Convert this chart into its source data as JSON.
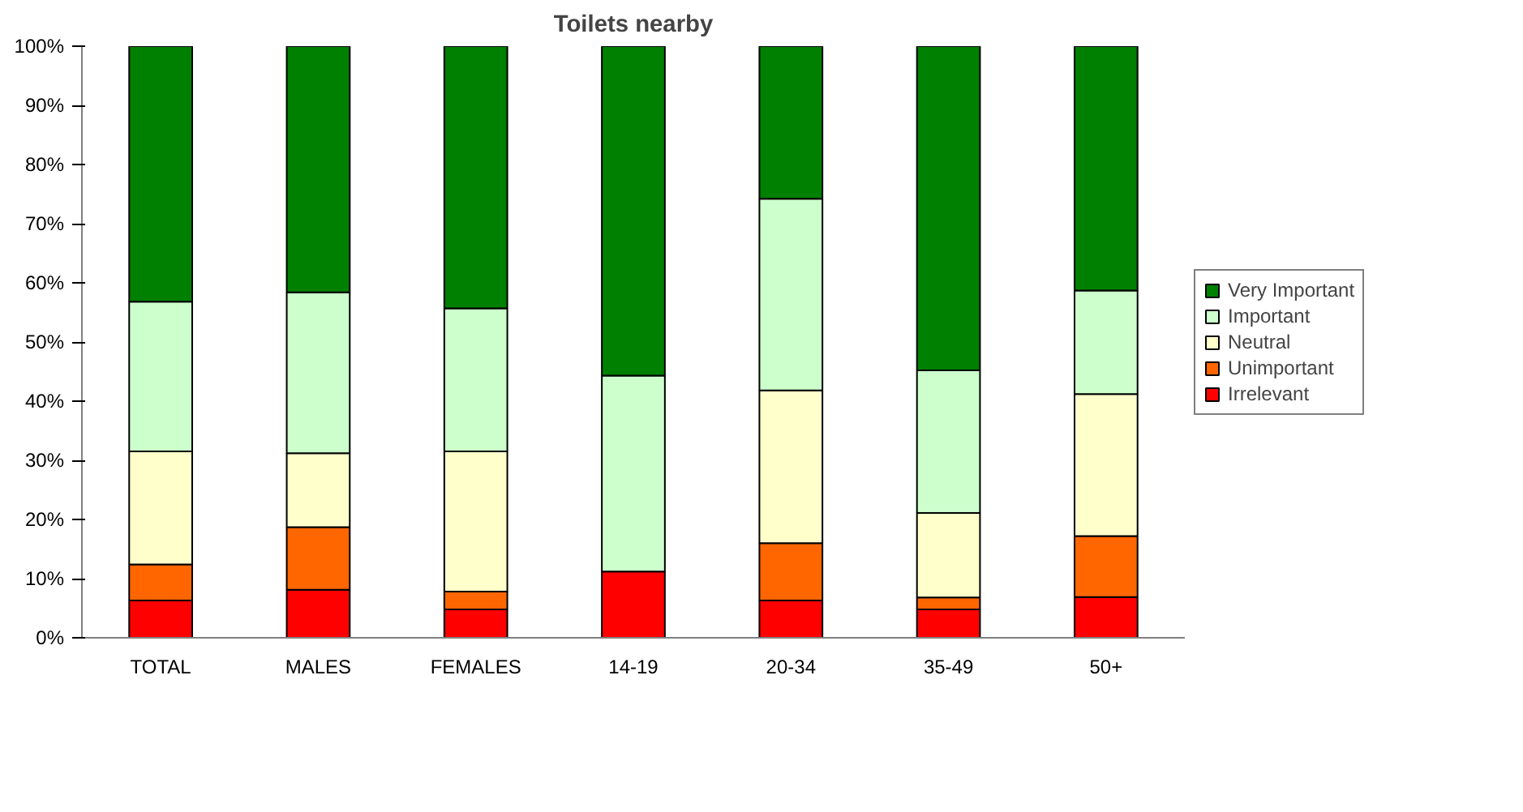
{
  "chart_data": {
    "type": "bar",
    "title": "Toilets nearby",
    "stacked": true,
    "categories": [
      "TOTAL",
      "MALES",
      "FEMALES",
      "14-19",
      "20-34",
      "35-49",
      "50+"
    ],
    "series": [
      {
        "name": "Irrelevant",
        "color": "#ff0000",
        "values": [
          6.3,
          8.1,
          4.8,
          11.2,
          6.3,
          4.8,
          6.9
        ]
      },
      {
        "name": "Unimportant",
        "color": "#ff6600",
        "values": [
          6.1,
          10.6,
          3.0,
          null,
          9.7,
          2.0,
          10.3
        ]
      },
      {
        "name": "Neutral",
        "color": "#ffffcc",
        "values": [
          19.1,
          12.5,
          23.7,
          null,
          25.8,
          14.3,
          24.0
        ]
      },
      {
        "name": "Important",
        "color": "#ccffcc",
        "values": [
          25.3,
          27.2,
          24.2,
          33.1,
          32.4,
          24.1,
          17.5
        ]
      },
      {
        "name": "Very Important",
        "color": "#008000",
        "values": [
          43.2,
          41.6,
          44.3,
          55.7,
          25.8,
          54.8,
          41.3
        ]
      }
    ],
    "ylim": [
      0,
      100
    ],
    "yticks": [
      {
        "value": 0,
        "label": "0%"
      },
      {
        "value": 10,
        "label": "10%"
      },
      {
        "value": 20,
        "label": "20%"
      },
      {
        "value": 30,
        "label": "30%"
      },
      {
        "value": 40,
        "label": "40%"
      },
      {
        "value": 50,
        "label": "50%"
      },
      {
        "value": 60,
        "label": "60%"
      },
      {
        "value": 70,
        "label": "70%"
      },
      {
        "value": 80,
        "label": "80%"
      },
      {
        "value": 90,
        "label": "90%"
      },
      {
        "value": 100,
        "label": "100%"
      }
    ],
    "grid": false,
    "legend": "right"
  }
}
